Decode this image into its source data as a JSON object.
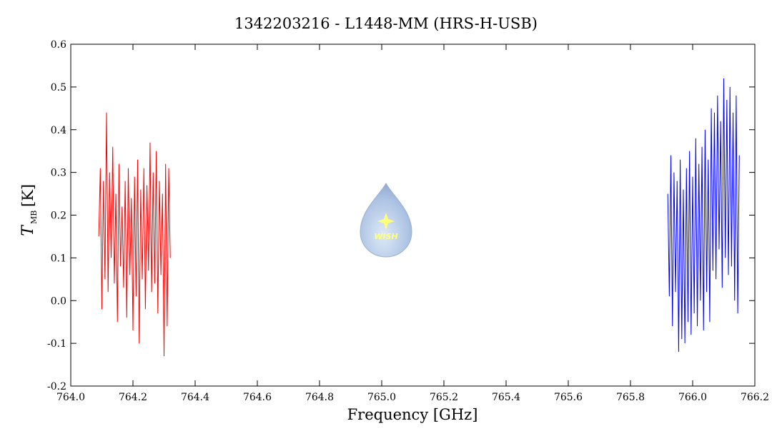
{
  "chart_data": {
    "type": "line",
    "title": "1342203216 - L1448-MM (HRS-H-USB)",
    "xlabel": "Frequency [GHz]",
    "ylabel": "T",
    "ylabel_sub": "MB",
    "ylabel_unit": "[K]",
    "watermark": "WISH",
    "xlim": [
      764.0,
      766.2
    ],
    "xticks": [
      {
        "value": 764.0,
        "label": "764.0"
      },
      764.2,
      764.4,
      764.6,
      764.8,
      {
        "value": 765.0,
        "label": "765.0"
      },
      765.2,
      765.4,
      765.6,
      765.8,
      {
        "value": 766.0,
        "label": "766.0"
      },
      766.2
    ],
    "ylim": [
      -0.2,
      0.6
    ],
    "yticks": [
      -0.2,
      -0.1,
      {
        "value": 0.0,
        "label": "0.0"
      },
      0.1,
      0.2,
      0.3,
      0.4,
      0.5,
      0.6
    ],
    "series": [
      {
        "color": "#ff0000",
        "x": [
          764.09,
          764.095,
          764.1,
          764.105,
          764.11,
          764.115,
          764.12,
          764.125,
          764.13,
          764.135,
          764.14,
          764.145,
          764.15,
          764.155,
          764.16,
          764.165,
          764.17,
          764.175,
          764.18,
          764.185,
          764.19,
          764.195,
          764.2,
          764.205,
          764.21,
          764.215,
          764.22,
          764.225,
          764.23,
          764.235,
          764.24,
          764.245,
          764.25,
          764.255,
          764.26,
          764.265,
          764.27,
          764.275,
          764.28,
          764.285,
          764.29,
          764.295,
          764.3,
          764.305,
          764.31,
          764.315,
          764.32
        ],
        "values": [
          0.15,
          0.31,
          -0.02,
          0.28,
          0.05,
          0.44,
          0.02,
          0.3,
          0.1,
          0.36,
          0.04,
          0.25,
          -0.05,
          0.32,
          0.08,
          0.22,
          0.03,
          0.28,
          -0.04,
          0.31,
          0.06,
          0.24,
          -0.07,
          0.29,
          0.01,
          0.33,
          -0.1,
          0.26,
          0.05,
          0.31,
          -0.02,
          0.27,
          0.07,
          0.37,
          0.02,
          0.3,
          0.04,
          0.35,
          -0.03,
          0.28,
          0.06,
          0.25,
          -0.13,
          0.32,
          -0.06,
          0.31,
          0.1
        ]
      },
      {
        "color": "#0000ff",
        "x": [
          765.92,
          765.925,
          765.93,
          765.935,
          765.94,
          765.945,
          765.95,
          765.955,
          765.96,
          765.965,
          765.97,
          765.975,
          765.98,
          765.985,
          765.99,
          765.995,
          766.0,
          766.005,
          766.01,
          766.015,
          766.02,
          766.025,
          766.03,
          766.035,
          766.04,
          766.045,
          766.05,
          766.055,
          766.06,
          766.065,
          766.07,
          766.075,
          766.08,
          766.085,
          766.09,
          766.095,
          766.1,
          766.105,
          766.11,
          766.115,
          766.12,
          766.125,
          766.13,
          766.135,
          766.14,
          766.145,
          766.15
        ],
        "values": [
          0.25,
          0.01,
          0.34,
          -0.06,
          0.3,
          0.02,
          0.28,
          -0.12,
          0.33,
          -0.09,
          0.26,
          -0.1,
          0.31,
          -0.05,
          0.35,
          -0.08,
          0.29,
          -0.03,
          0.38,
          -0.06,
          0.32,
          0.0,
          0.36,
          -0.07,
          0.4,
          0.02,
          0.33,
          -0.05,
          0.45,
          0.07,
          0.44,
          0.05,
          0.48,
          0.12,
          0.42,
          0.03,
          0.52,
          0.1,
          0.47,
          0.06,
          0.5,
          0.08,
          0.44,
          0.0,
          0.48,
          -0.03,
          0.34
        ]
      }
    ]
  }
}
